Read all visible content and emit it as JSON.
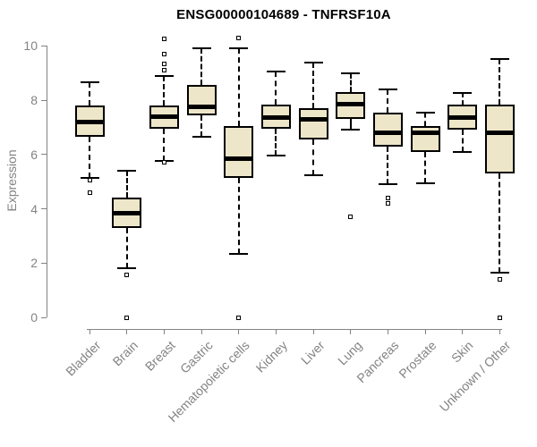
{
  "chart_data": {
    "type": "boxplot",
    "title": "ENSG00000104689 - TNFRSF10A",
    "xlabel": "",
    "ylabel": "Expression",
    "ylim": [
      0,
      10
    ],
    "yticks": [
      0,
      2,
      4,
      6,
      8,
      10
    ],
    "grid": false,
    "legend": false,
    "categories": [
      "Bladder",
      "Brain",
      "Breast",
      "Gastric",
      "Hematopoietic cells",
      "Kidney",
      "Liver",
      "Lung",
      "Pancreas",
      "Prostate",
      "Skin",
      "Unknown / Other"
    ],
    "series": [
      {
        "name": "Bladder",
        "whisker_low": 5.15,
        "q1": 6.65,
        "median": 7.2,
        "q3": 7.8,
        "whisker_high": 8.65,
        "outliers": [
          5.05,
          4.6
        ]
      },
      {
        "name": "Brain",
        "whisker_low": 1.8,
        "q1": 3.3,
        "median": 3.85,
        "q3": 4.4,
        "whisker_high": 5.4,
        "outliers": [
          1.55,
          0
        ]
      },
      {
        "name": "Breast",
        "whisker_low": 5.75,
        "q1": 6.95,
        "median": 7.4,
        "q3": 7.8,
        "whisker_high": 8.9,
        "outliers": [
          10.25,
          9.7,
          9.35,
          9.1,
          5.7
        ]
      },
      {
        "name": "Gastric",
        "whisker_low": 6.65,
        "q1": 7.45,
        "median": 7.75,
        "q3": 8.55,
        "whisker_high": 9.9,
        "outliers": []
      },
      {
        "name": "Hematopoietic cells",
        "whisker_low": 2.35,
        "q1": 5.15,
        "median": 5.85,
        "q3": 7.05,
        "whisker_high": 9.9,
        "outliers": [
          10.3,
          0
        ]
      },
      {
        "name": "Kidney",
        "whisker_low": 5.95,
        "q1": 6.95,
        "median": 7.35,
        "q3": 7.85,
        "whisker_high": 9.05,
        "outliers": []
      },
      {
        "name": "Liver",
        "whisker_low": 5.25,
        "q1": 6.55,
        "median": 7.3,
        "q3": 7.7,
        "whisker_high": 9.4,
        "outliers": []
      },
      {
        "name": "Lung",
        "whisker_low": 6.9,
        "q1": 7.3,
        "median": 7.85,
        "q3": 8.3,
        "whisker_high": 9.0,
        "outliers": [
          3.7
        ]
      },
      {
        "name": "Pancreas",
        "whisker_low": 4.9,
        "q1": 6.3,
        "median": 6.8,
        "q3": 7.55,
        "whisker_high": 8.4,
        "outliers": [
          4.4,
          4.2
        ]
      },
      {
        "name": "Prostate",
        "whisker_low": 4.95,
        "q1": 6.1,
        "median": 6.8,
        "q3": 7.05,
        "whisker_high": 7.55,
        "outliers": []
      },
      {
        "name": "Skin",
        "whisker_low": 6.1,
        "q1": 6.9,
        "median": 7.35,
        "q3": 7.85,
        "whisker_high": 8.25,
        "outliers": []
      },
      {
        "name": "Unknown / Other",
        "whisker_low": 1.65,
        "q1": 5.3,
        "median": 6.8,
        "q3": 7.85,
        "whisker_high": 9.5,
        "outliers": [
          1.4,
          0
        ]
      }
    ],
    "colors": {
      "box_fill": "#EDE6C8",
      "box_border": "#000000",
      "median": "#000000",
      "axis": "#838383",
      "title": "#000000",
      "background": "#ffffff"
    }
  }
}
